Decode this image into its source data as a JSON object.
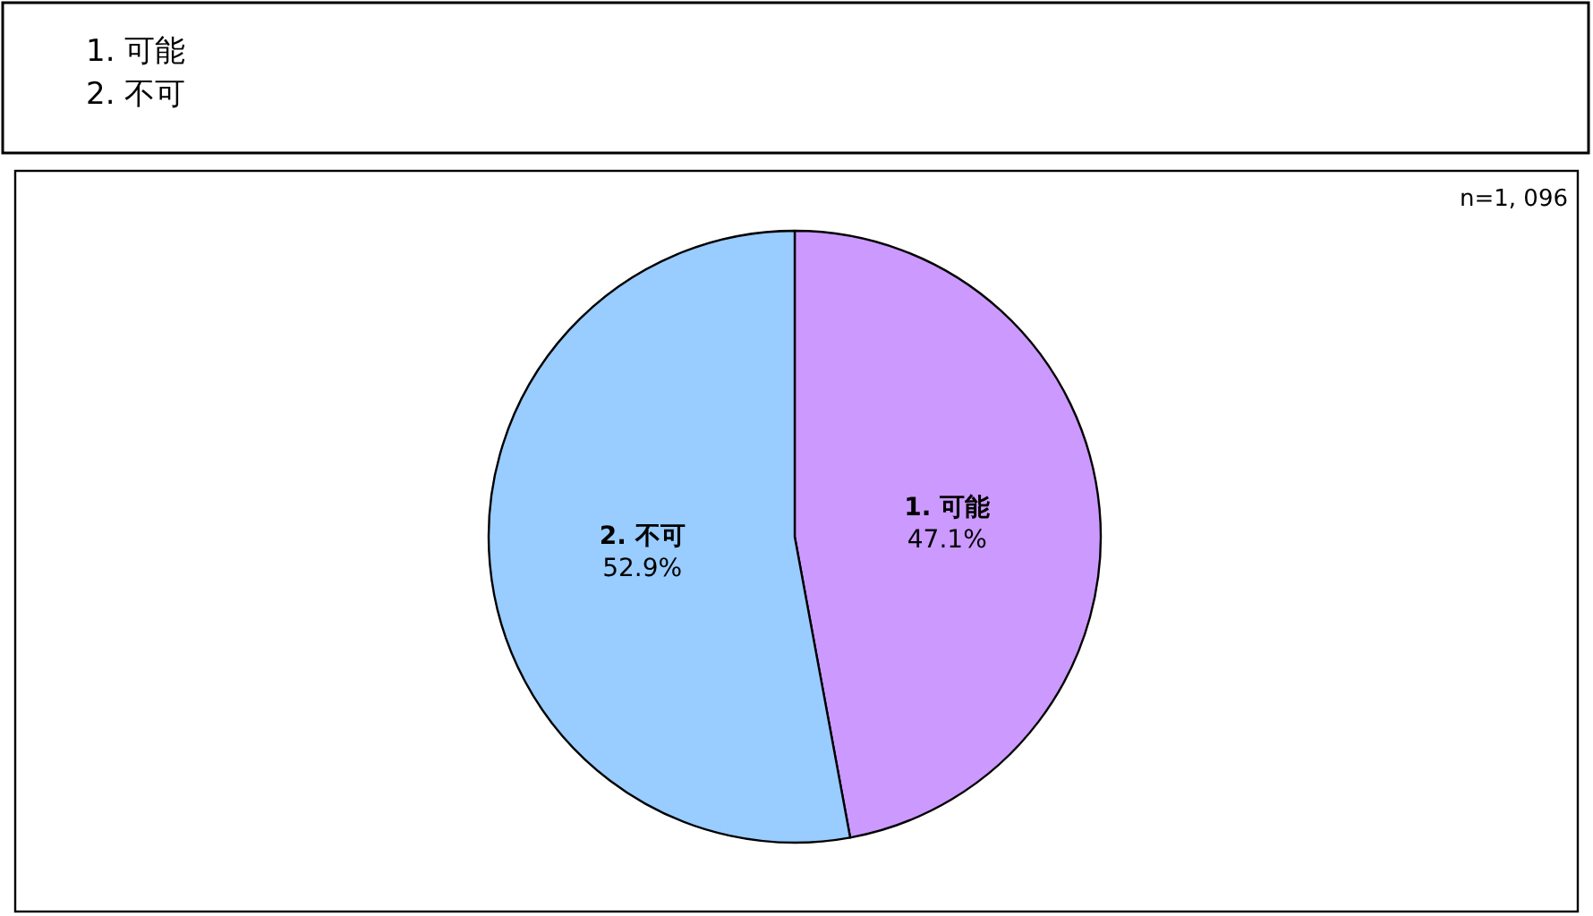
{
  "chart_data": {
    "type": "pie",
    "categories": [
      "1. 可能",
      "2. 不可"
    ],
    "values": [
      47.1,
      52.9
    ],
    "colors": [
      "#cc99ff",
      "#99ccff"
    ],
    "value_labels": [
      "47.1%",
      "52.9%"
    ],
    "annotations": [
      "1. 可能",
      "2. 不可",
      "n=1, 096"
    ],
    "legend": false
  }
}
